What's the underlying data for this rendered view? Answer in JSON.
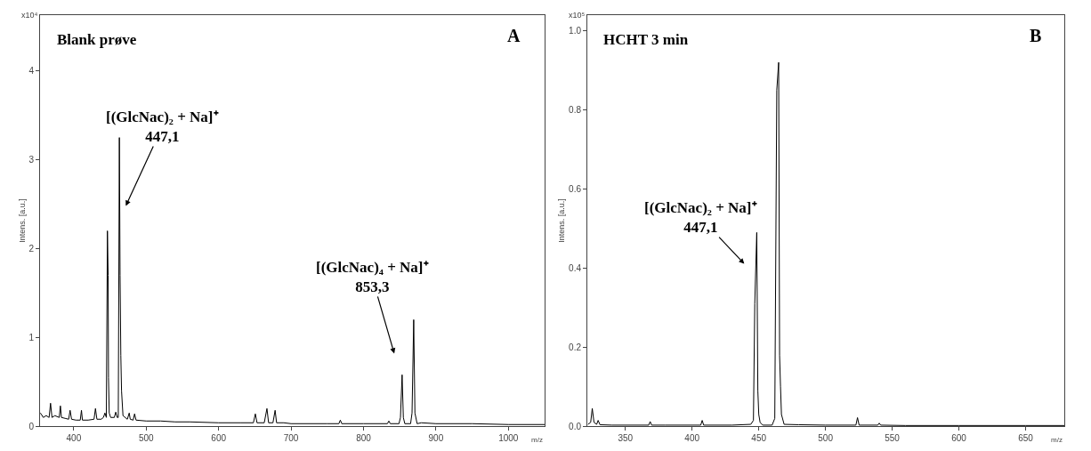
{
  "chart_data": [
    {
      "type": "line",
      "title": "Blank prøve",
      "xlabel": "m/z",
      "ylabel": "Intens. [a.u.]",
      "annotations": [
        "[(GlcNac)₂ + Na]⁺\n447,1",
        "[(GlcNac)₄ + Na]⁺\n853,3",
        "A",
        "x10⁴"
      ],
      "series": [
        {
          "color": "#000000",
          "x": [
            354,
            358,
            362,
            366,
            368,
            370,
            374,
            380,
            381.6,
            383,
            388,
            393,
            395,
            397,
            403,
            409,
            410.7,
            412,
            420,
            428,
            430,
            432,
            438,
            441,
            443,
            445,
            446.5,
            447.5,
            448,
            449,
            451,
            456,
            458,
            460,
            461.5,
            463,
            464,
            465,
            466,
            468,
            474,
            476.6,
            478,
            482,
            484,
            486,
            500,
            520,
            540,
            560,
            600,
            630,
            648,
            650.7,
            653,
            663,
            666.7,
            669,
            675,
            678,
            680,
            690,
            700,
            750,
            766,
            768,
            770,
            800,
            833,
            835,
            837,
            849,
            851,
            853.3,
            855,
            857,
            865,
            867,
            869.3,
            871,
            874,
            880,
            900,
            950,
            1000,
            1050
          ],
          "values": [
            0.15,
            0.1,
            0.12,
            0.1,
            0.26,
            0.1,
            0.12,
            0.1,
            0.23,
            0.1,
            0.09,
            0.08,
            0.18,
            0.08,
            0.07,
            0.07,
            0.18,
            0.07,
            0.07,
            0.08,
            0.2,
            0.08,
            0.08,
            0.1,
            0.15,
            0.1,
            2.2,
            1.7,
            0.55,
            0.15,
            0.1,
            0.1,
            0.16,
            0.1,
            0.1,
            3.25,
            1.7,
            0.8,
            0.4,
            0.12,
            0.08,
            0.15,
            0.08,
            0.07,
            0.14,
            0.07,
            0.06,
            0.06,
            0.05,
            0.05,
            0.04,
            0.04,
            0.04,
            0.14,
            0.04,
            0.04,
            0.2,
            0.04,
            0.04,
            0.18,
            0.04,
            0.04,
            0.03,
            0.03,
            0.03,
            0.07,
            0.03,
            0.03,
            0.03,
            0.06,
            0.03,
            0.03,
            0.1,
            0.58,
            0.1,
            0.03,
            0.03,
            0.15,
            1.2,
            0.15,
            0.03,
            0.04,
            0.03,
            0.03,
            0.02,
            0.02
          ]
        }
      ],
      "xlim": [
        353.5,
        1050
      ],
      "xticks": [
        400,
        500,
        600,
        700,
        800,
        900,
        1000
      ],
      "ylim": [
        0,
        4.63
      ],
      "yticks": [
        0,
        1,
        2,
        3,
        4
      ]
    },
    {
      "type": "line",
      "title": "HCHT 3 min",
      "xlabel": "m/z",
      "ylabel": "Intens. [a.u.]",
      "annotations": [
        "[(GlcNac)₂ + Na]⁺\n447,1",
        "B",
        "x10⁵"
      ],
      "series": [
        {
          "color": "#000000",
          "x": [
            322,
            324,
            325.2,
            326.5,
            328.5,
            329.6,
            331,
            340,
            367.5,
            368.6,
            369.7,
            380,
            406.5,
            407.6,
            408.7,
            430,
            444,
            446,
            447,
            448.5,
            449.3,
            450,
            451,
            453,
            460,
            462,
            463.5,
            464.9,
            465.6,
            466.3,
            467,
            469,
            480,
            500,
            522.8,
            524,
            525.2,
            539.2,
            540.3,
            541.4,
            560,
            600,
            650,
            679
          ],
          "values": [
            0.005,
            0.01,
            0.045,
            0.01,
            0.005,
            0.015,
            0.004,
            0.003,
            0.003,
            0.012,
            0.003,
            0.003,
            0.003,
            0.015,
            0.003,
            0.003,
            0.005,
            0.015,
            0.31,
            0.49,
            0.09,
            0.03,
            0.01,
            0.003,
            0.003,
            0.02,
            0.85,
            0.92,
            0.18,
            0.1,
            0.03,
            0.005,
            0.004,
            0.003,
            0.003,
            0.022,
            0.003,
            0.003,
            0.008,
            0.003,
            0.002,
            0.002,
            0.002,
            0.002
          ]
        }
      ],
      "xlim": [
        321.5,
        679
      ],
      "xticks": [
        350,
        400,
        450,
        500,
        550,
        600,
        650
      ],
      "ylim": [
        0,
        1.04
      ],
      "yticks": [
        {
          "value": 0,
          "label": "0.0"
        },
        0.2,
        0.4,
        0.6,
        0.8,
        {
          "value": 1,
          "label": "1.0"
        }
      ]
    }
  ]
}
